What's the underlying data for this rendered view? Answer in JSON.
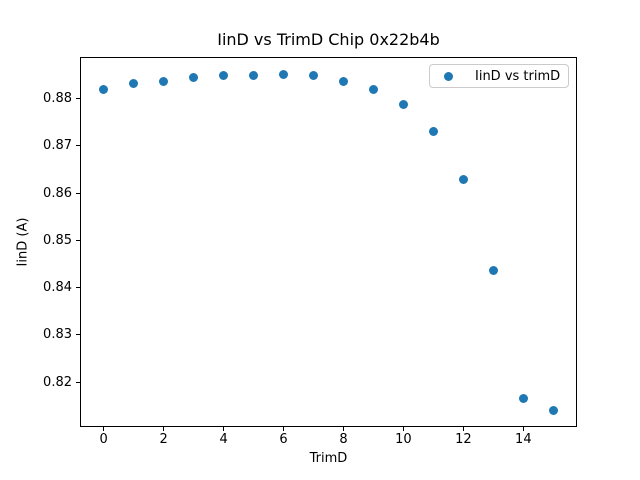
{
  "chart_data": {
    "type": "scatter",
    "title": "IinD vs TrimD Chip 0x22b4b",
    "xlabel": "TrimD",
    "ylabel": "IinD (A)",
    "legend": {
      "position": "upper right",
      "entries": [
        {
          "label": "IinD vs trimD",
          "marker": "circle",
          "color": "#1f77b4"
        }
      ]
    },
    "series": [
      {
        "name": "IinD vs trimD",
        "x": [
          0,
          1,
          2,
          3,
          4,
          5,
          6,
          7,
          8,
          9,
          10,
          11,
          12,
          13,
          14,
          15
        ],
        "y": [
          0.8819,
          0.8831,
          0.8837,
          0.8845,
          0.8849,
          0.8849,
          0.8852,
          0.8848,
          0.8837,
          0.8819,
          0.8787,
          0.8731,
          0.8629,
          0.8437,
          0.8166,
          0.814
        ]
      }
    ],
    "xticks": [
      0,
      2,
      4,
      6,
      8,
      10,
      12,
      14
    ],
    "yticks": [
      "0.82",
      "0.83",
      "0.84",
      "0.85",
      "0.86",
      "0.87",
      "0.88"
    ],
    "xlim": [
      -0.79,
      15.79
    ],
    "ylim": [
      0.8105,
      0.8888
    ],
    "grid": false,
    "marker_color": "#1f77b4",
    "background": "#ffffff"
  }
}
